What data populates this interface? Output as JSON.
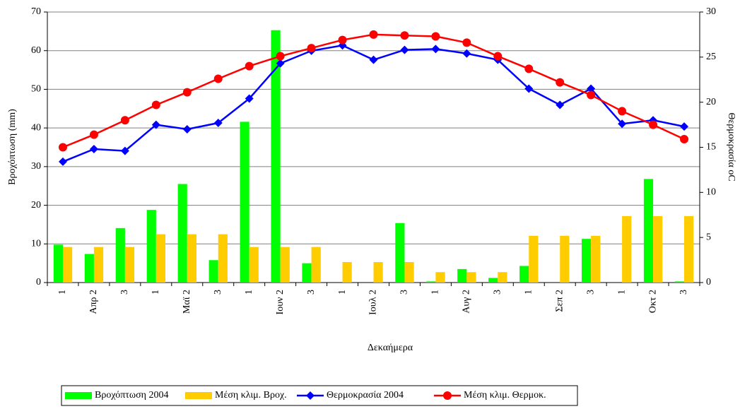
{
  "chart_data": {
    "type": "bar-line",
    "categories": [
      "1",
      "Απρ 2",
      "3",
      "1",
      "Μαϊ 2",
      "3",
      "1",
      "Ιουν 2",
      "3",
      "1",
      "Ιουλ 2",
      "3",
      "1",
      "Αυγ 2",
      "3",
      "1",
      "Σεπ 2",
      "3",
      "1",
      "Οκτ 2",
      "3"
    ],
    "x_label": "Δεκαήμερα",
    "y_label": "Βροχόπτωση (mm)",
    "y2_label": "Θερμοκρασία oC",
    "ylim": [
      0,
      70
    ],
    "yticks": [
      0,
      10,
      20,
      30,
      40,
      50,
      60,
      70
    ],
    "y2lim": [
      0,
      30
    ],
    "y2ticks": [
      0,
      5,
      10,
      15,
      20,
      25,
      30
    ],
    "grid": true,
    "series": [
      {
        "name": "Βροχόπτωση 2004",
        "type": "bar",
        "color": "#00ff00",
        "values": [
          9.8,
          7.4,
          14.1,
          18.8,
          25.5,
          5.8,
          41.6,
          65.3,
          5.0,
          0,
          0,
          15.4,
          0.3,
          3.5,
          1.2,
          4.3,
          0,
          11.3,
          0,
          26.8,
          0.3
        ]
      },
      {
        "name": "Μέση κλιμ. Βροχ.",
        "type": "bar",
        "color": "#ffcc00",
        "values": [
          9.2,
          9.2,
          9.2,
          12.5,
          12.5,
          12.5,
          9.2,
          9.2,
          9.2,
          5.3,
          5.3,
          5.3,
          2.7,
          2.7,
          2.7,
          12.1,
          12.1,
          12.1,
          17.2,
          17.2,
          17.2
        ]
      },
      {
        "name": "Θερμοκρασία 2004",
        "type": "line",
        "marker": "diamond",
        "axis": "y2",
        "color": "#0000ff",
        "values": [
          13.4,
          14.8,
          14.6,
          17.5,
          17.0,
          17.7,
          20.4,
          24.3,
          25.7,
          26.3,
          24.7,
          25.8,
          25.9,
          25.4,
          24.7,
          21.5,
          19.7,
          21.5,
          17.6,
          18.0,
          17.3
        ]
      },
      {
        "name": "Μέση κλιμ. Θερμοκ.",
        "type": "line",
        "marker": "circle",
        "axis": "y2",
        "color": "#ff0000",
        "values": [
          15.0,
          16.4,
          18.0,
          19.7,
          21.1,
          22.6,
          24.0,
          25.1,
          26.0,
          26.9,
          27.5,
          27.4,
          27.3,
          26.6,
          25.1,
          23.7,
          22.2,
          20.8,
          19.0,
          17.5,
          15.9
        ]
      }
    ]
  }
}
